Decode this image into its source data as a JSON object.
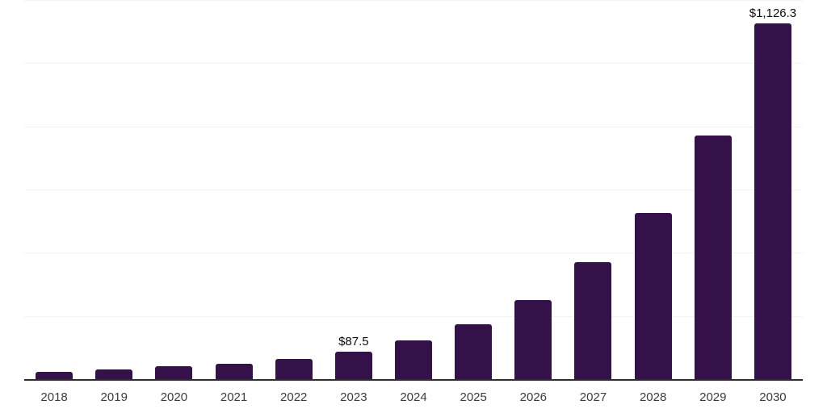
{
  "chart_data": {
    "type": "bar",
    "title": "",
    "xlabel": "",
    "ylabel": "",
    "categories": [
      "2018",
      "2019",
      "2020",
      "2021",
      "2022",
      "2023",
      "2024",
      "2025",
      "2026",
      "2027",
      "2028",
      "2029",
      "2030"
    ],
    "values": [
      24,
      30,
      41,
      49,
      63,
      87.5,
      122,
      175,
      250,
      370,
      527,
      770,
      1126.3
    ],
    "data_labels": [
      "",
      "",
      "",
      "",
      "",
      "$87.5",
      "",
      "",
      "",
      "",
      "",
      "",
      "$1,126.3"
    ],
    "ylim": [
      0,
      1200
    ],
    "grid_interval": 200,
    "grid_visible": true,
    "legend": null,
    "colors": {
      "bar": "#341249",
      "axis_line": "#2e2e2e",
      "gridline": "#f2f2f2",
      "tick_label": "#3c3c3c",
      "value_label": "#0d0d0d",
      "background": "#ffffff"
    }
  }
}
